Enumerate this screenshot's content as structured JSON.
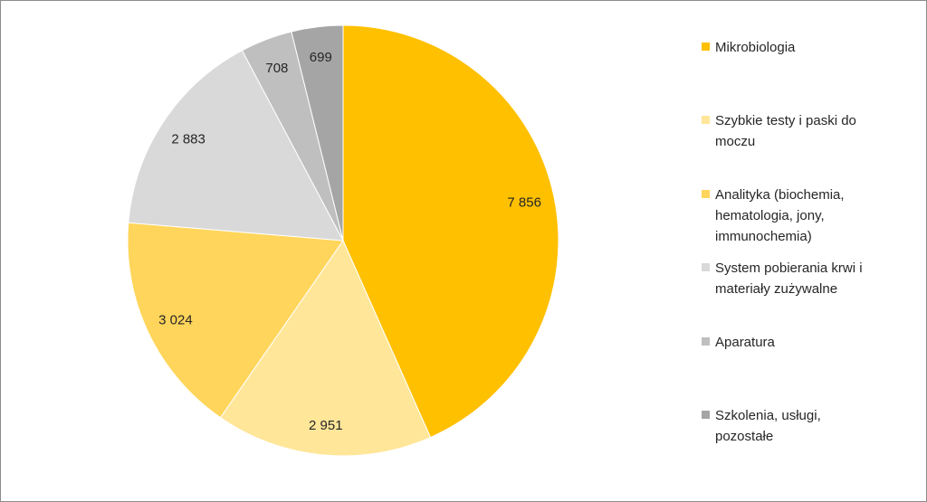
{
  "chart_data": {
    "type": "pie",
    "slices": [
      {
        "name": "Mikrobiologia",
        "value": 7856,
        "label": "7 856",
        "color": "#FFC000"
      },
      {
        "name": "Szybkie testy i paski do moczu",
        "value": 2951,
        "label": "2 951",
        "color": "#FFE699"
      },
      {
        "name": "Analityka (biochemia, hematologia, jony, immunochemia)",
        "value": 3024,
        "label": "3 024",
        "color": "#FFD55B"
      },
      {
        "name": "System pobierania krwi i materiały zużywalne",
        "value": 2883,
        "label": "2 883",
        "color": "#D9D9D9"
      },
      {
        "name": "Aparatura",
        "value": 708,
        "label": "708",
        "color": "#BFBFBF"
      },
      {
        "name": "Szkolenia, usługi, pozostałe",
        "value": 699,
        "label": "699",
        "color": "#A5A5A5"
      }
    ],
    "legend_position": "right",
    "start_angle": "top",
    "direction": "clockwise",
    "title": ""
  }
}
